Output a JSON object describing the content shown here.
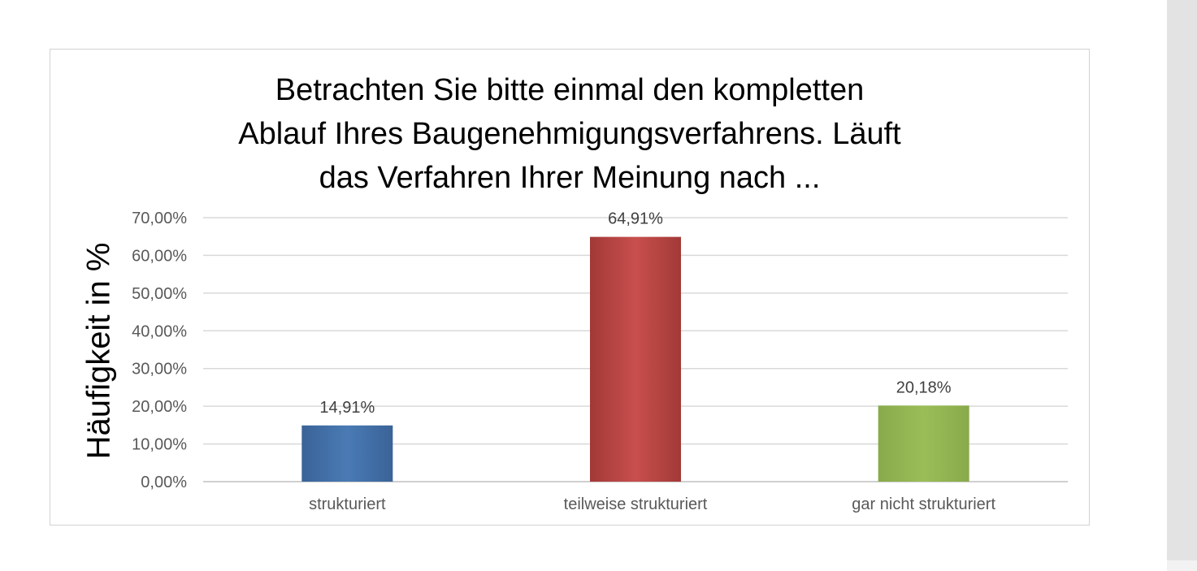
{
  "colors": {
    "gridline": "#d9d9d9",
    "axis": "#bfbfbf",
    "bar_strukturiert": "#4472a8",
    "bar_teilweise": "#bf4a48",
    "bar_gar_nicht": "#93b553"
  },
  "chart_data": {
    "type": "bar",
    "title_lines": [
      "Betrachten Sie bitte einmal den kompletten",
      "Ablauf Ihres Baugenehmigungsverfahrens. Läuft",
      "das Verfahren Ihrer Meinung nach ..."
    ],
    "xlabel": "",
    "ylabel": "Häufigkeit in %",
    "categories": [
      "strukturiert",
      "teilweise strukturiert",
      "gar nicht strukturiert"
    ],
    "values": [
      14.91,
      64.91,
      20.18
    ],
    "value_labels": [
      "14,91%",
      "64,91%",
      "20,18%"
    ],
    "ylim": [
      0,
      70
    ],
    "yticks": [
      0,
      10,
      20,
      30,
      40,
      50,
      60,
      70
    ],
    "ytick_labels": [
      "0,00%",
      "10,00%",
      "20,00%",
      "30,00%",
      "40,00%",
      "50,00%",
      "60,00%",
      "70,00%"
    ],
    "grid": true,
    "legend": "none"
  }
}
